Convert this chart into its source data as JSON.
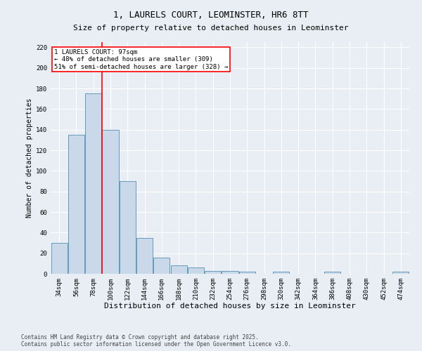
{
  "title1": "1, LAURELS COURT, LEOMINSTER, HR6 8TT",
  "title2": "Size of property relative to detached houses in Leominster",
  "xlabel": "Distribution of detached houses by size in Leominster",
  "ylabel": "Number of detached properties",
  "categories": [
    "34sqm",
    "56sqm",
    "78sqm",
    "100sqm",
    "122sqm",
    "144sqm",
    "166sqm",
    "188sqm",
    "210sqm",
    "232sqm",
    "254sqm",
    "276sqm",
    "298sqm",
    "320sqm",
    "342sqm",
    "364sqm",
    "386sqm",
    "408sqm",
    "430sqm",
    "452sqm",
    "474sqm"
  ],
  "values": [
    30,
    135,
    175,
    140,
    90,
    35,
    16,
    8,
    6,
    3,
    3,
    2,
    0,
    2,
    0,
    0,
    2,
    0,
    0,
    0,
    2
  ],
  "bar_color": "#c9d9ea",
  "bar_edge_color": "#6699bb",
  "vline_color": "red",
  "annotation_text": "1 LAURELS COURT: 97sqm\n← 48% of detached houses are smaller (309)\n51% of semi-detached houses are larger (328) →",
  "annotation_box_color": "white",
  "annotation_box_edge": "red",
  "ylim": [
    0,
    225
  ],
  "yticks": [
    0,
    20,
    40,
    60,
    80,
    100,
    120,
    140,
    160,
    180,
    200,
    220
  ],
  "footer1": "Contains HM Land Registry data © Crown copyright and database right 2025.",
  "footer2": "Contains public sector information licensed under the Open Government Licence v3.0.",
  "bg_color": "#e8eef4",
  "plot_bg_color": "#e8eef4",
  "grid_color": "white",
  "title1_fontsize": 9,
  "title2_fontsize": 8,
  "xlabel_fontsize": 8,
  "ylabel_fontsize": 7,
  "tick_fontsize": 6.5,
  "annotation_fontsize": 6.5,
  "footer_fontsize": 5.5
}
